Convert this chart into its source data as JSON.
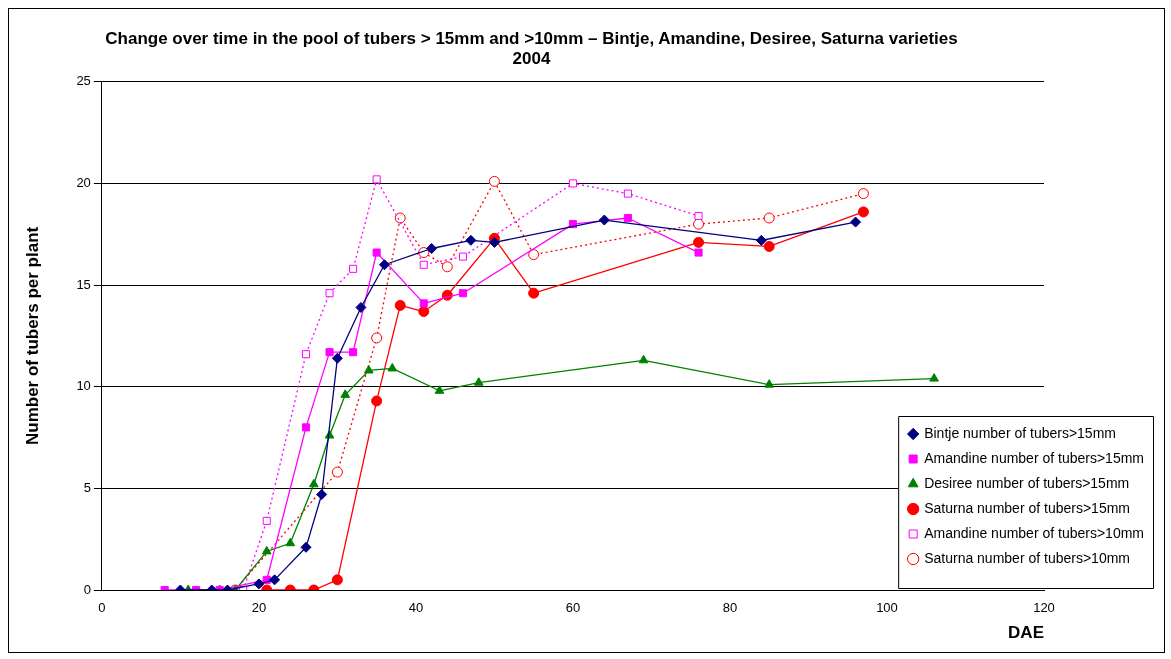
{
  "chart_data": {
    "type": "line",
    "title": "Change over time in the pool of tubers > 15mm and >10mm – Bintje, Amandine, Desiree, Saturna varieties 2004",
    "xlabel": "DAE",
    "ylabel": "Number of tubers per plant",
    "xlim": [
      0,
      120
    ],
    "xticks": [
      0,
      20,
      40,
      60,
      80,
      100,
      120
    ],
    "ylim": [
      0,
      25
    ],
    "yticks": [
      0,
      5,
      10,
      15,
      20,
      25
    ],
    "grid": "y",
    "legend": "bottom right",
    "series": [
      {
        "name": "Bintje number of tubers>15mm",
        "color": "#000080",
        "marker": "diamond",
        "line_style": "solid",
        "x": [
          10,
          14,
          16,
          20,
          22,
          26,
          28,
          30,
          33,
          36,
          42,
          47,
          50,
          64,
          84,
          96
        ],
        "values": [
          0,
          0,
          0,
          0.3,
          0.5,
          2.1,
          4.7,
          11.4,
          13.9,
          16.0,
          16.8,
          17.2,
          17.1,
          18.2,
          17.2,
          18.1
        ]
      },
      {
        "name": "Amandine number of tubers>15mm",
        "color": "#ff00ff",
        "marker": "square",
        "line_style": "solid",
        "x": [
          8,
          12,
          15,
          21,
          26,
          29,
          32,
          35,
          41,
          46,
          60,
          67,
          76
        ],
        "values": [
          0,
          0,
          0,
          0.5,
          8.0,
          11.7,
          11.7,
          16.6,
          14.1,
          14.6,
          18.0,
          18.3,
          16.6
        ]
      },
      {
        "name": "Desiree number of tubers>15mm",
        "color": "#008000",
        "marker": "triangle",
        "line_style": "solid",
        "x": [
          11,
          15,
          17,
          21,
          24,
          27,
          29,
          31,
          34,
          37,
          43,
          48,
          69,
          85,
          106
        ],
        "values": [
          0,
          0,
          0,
          1.9,
          2.3,
          5.2,
          7.6,
          9.6,
          10.8,
          10.9,
          9.8,
          10.2,
          11.3,
          10.1,
          10.4
        ]
      },
      {
        "name": "Saturna number of tubers>15mm",
        "color": "#ff0000",
        "marker": "circle",
        "line_style": "solid",
        "x": [
          21,
          24,
          27,
          30,
          35,
          38,
          41,
          44,
          50,
          55,
          76,
          85,
          97
        ],
        "values": [
          0,
          0,
          0,
          0.5,
          9.3,
          14.0,
          13.7,
          14.5,
          17.3,
          14.6,
          17.1,
          16.9,
          18.6
        ]
      },
      {
        "name": "Amandine number of tubers>10mm",
        "color": "#ff00ff",
        "marker": "square",
        "line_style": "dotted",
        "x": [
          18,
          21,
          26,
          29,
          32,
          35,
          41,
          46,
          60,
          67,
          76
        ],
        "values": [
          0,
          3.4,
          11.6,
          14.6,
          15.8,
          20.2,
          16.0,
          16.4,
          20.0,
          19.5,
          18.4
        ]
      },
      {
        "name": "Saturna number of tubers>10mm",
        "color": "#ff0000",
        "marker": "circle",
        "line_style": "dotted",
        "x": [
          17,
          30,
          35,
          38,
          41,
          44,
          50,
          55,
          76,
          85,
          97
        ],
        "values": [
          0,
          5.8,
          12.4,
          18.3,
          16.6,
          15.9,
          20.1,
          16.5,
          18.0,
          18.3,
          19.5
        ]
      }
    ]
  }
}
